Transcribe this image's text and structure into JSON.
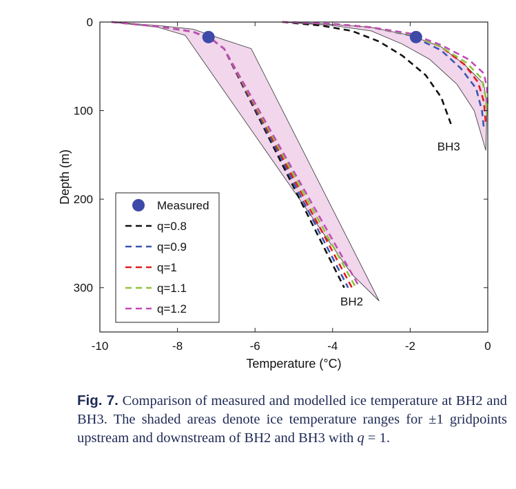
{
  "chart_data": {
    "type": "line",
    "xlabel": "Temperature (°C)",
    "ylabel": "Depth (m)",
    "xlim": [
      -10,
      0
    ],
    "ylim": [
      0,
      350
    ],
    "y_inverted": true,
    "xticks": [
      -10,
      -8,
      -6,
      -4,
      -2,
      0
    ],
    "yticks": [
      0,
      100,
      200,
      300
    ],
    "grid": false,
    "legend_position": "bottom-left",
    "colors": {
      "measured": "#3d4aa8",
      "band_fill": "#f1d6ec",
      "band_stroke": "#444444",
      "q=0.8": "#111111",
      "q=0.9": "#3a56b0",
      "q=1": "#dd1e1e",
      "q=1.1": "#8fc23a",
      "q=1.2": "#c04ab8"
    },
    "legend": [
      {
        "label": "Measured",
        "kind": "marker"
      },
      {
        "label": "q=0.8",
        "kind": "dash"
      },
      {
        "label": "q=0.9",
        "kind": "dash"
      },
      {
        "label": "q=1",
        "kind": "dash"
      },
      {
        "label": "q=1.1",
        "kind": "dash"
      },
      {
        "label": "q=1.2",
        "kind": "dash"
      }
    ],
    "annotations": [
      {
        "text": "BH2",
        "x": -3.8,
        "y": 320
      },
      {
        "text": "BH3",
        "x": -1.3,
        "y": 145
      }
    ],
    "measured": [
      {
        "x": -7.2,
        "y": 17
      },
      {
        "x": -1.85,
        "y": 17
      }
    ],
    "bands": [
      {
        "name": "BH2",
        "upper": [
          [
            -9.7,
            0
          ],
          [
            -8.5,
            4
          ],
          [
            -7.6,
            8
          ],
          [
            -6.8,
            20
          ],
          [
            -6.1,
            30
          ],
          [
            -2.8,
            315
          ]
        ],
        "lower": [
          [
            -9.7,
            0
          ],
          [
            -8.5,
            6
          ],
          [
            -7.8,
            15
          ],
          [
            -3.5,
            285
          ],
          [
            -2.8,
            315
          ]
        ]
      },
      {
        "name": "BH3",
        "upper": [
          [
            -5.3,
            0
          ],
          [
            -4.2,
            2
          ],
          [
            -3.0,
            6
          ],
          [
            -2.0,
            15
          ],
          [
            -1.2,
            28
          ],
          [
            -0.6,
            48
          ],
          [
            -0.1,
            70
          ],
          [
            -0.02,
            95
          ],
          [
            -0.05,
            145
          ]
        ],
        "lower": [
          [
            -5.3,
            0
          ],
          [
            -4.0,
            4
          ],
          [
            -3.0,
            10
          ],
          [
            -2.2,
            25
          ],
          [
            -1.5,
            42
          ],
          [
            -0.8,
            70
          ],
          [
            -0.35,
            100
          ],
          [
            -0.05,
            145
          ]
        ]
      }
    ],
    "series": [
      {
        "name": "q=0.8",
        "bh": "BH2",
        "points": [
          [
            -9.7,
            0
          ],
          [
            -8.5,
            5
          ],
          [
            -7.6,
            11
          ],
          [
            -7.1,
            20
          ],
          [
            -6.8,
            30
          ],
          [
            -3.7,
            300
          ]
        ]
      },
      {
        "name": "q=0.9",
        "bh": "BH2",
        "points": [
          [
            -9.7,
            0
          ],
          [
            -8.5,
            5
          ],
          [
            -7.6,
            11
          ],
          [
            -7.1,
            20
          ],
          [
            -6.8,
            30
          ],
          [
            -3.6,
            300
          ]
        ]
      },
      {
        "name": "q=1",
        "bh": "BH2",
        "points": [
          [
            -9.7,
            0
          ],
          [
            -8.5,
            5
          ],
          [
            -7.6,
            11
          ],
          [
            -7.1,
            20
          ],
          [
            -6.8,
            30
          ],
          [
            -3.5,
            300
          ]
        ]
      },
      {
        "name": "q=1.1",
        "bh": "BH2",
        "points": [
          [
            -9.7,
            0
          ],
          [
            -8.5,
            5
          ],
          [
            -7.6,
            11
          ],
          [
            -7.1,
            20
          ],
          [
            -6.8,
            30
          ],
          [
            -3.4,
            300
          ]
        ]
      },
      {
        "name": "q=1.2",
        "bh": "BH2",
        "points": [
          [
            -9.7,
            0
          ],
          [
            -8.5,
            5
          ],
          [
            -7.6,
            11
          ],
          [
            -7.1,
            20
          ],
          [
            -6.8,
            30
          ],
          [
            -3.3,
            300
          ]
        ]
      },
      {
        "name": "q=0.8",
        "bh": "BH3",
        "points": [
          [
            -5.3,
            0
          ],
          [
            -4.3,
            4
          ],
          [
            -3.5,
            10
          ],
          [
            -2.8,
            22
          ],
          [
            -2.2,
            38
          ],
          [
            -1.6,
            60
          ],
          [
            -1.2,
            85
          ],
          [
            -0.95,
            115
          ]
        ]
      },
      {
        "name": "q=0.9",
        "bh": "BH3",
        "points": [
          [
            -5.3,
            0
          ],
          [
            -4.0,
            2
          ],
          [
            -3.0,
            6
          ],
          [
            -2.0,
            15
          ],
          [
            -1.2,
            32
          ],
          [
            -0.7,
            52
          ],
          [
            -0.3,
            75
          ],
          [
            -0.15,
            100
          ],
          [
            -0.1,
            120
          ]
        ]
      },
      {
        "name": "q=1",
        "bh": "BH3",
        "points": [
          [
            -5.3,
            0
          ],
          [
            -4.0,
            2
          ],
          [
            -3.0,
            6
          ],
          [
            -2.0,
            14
          ],
          [
            -1.2,
            28
          ],
          [
            -0.6,
            48
          ],
          [
            -0.25,
            68
          ],
          [
            -0.1,
            90
          ],
          [
            -0.05,
            115
          ]
        ]
      },
      {
        "name": "q=1.1",
        "bh": "BH3",
        "points": [
          [
            -5.3,
            0
          ],
          [
            -4.0,
            2
          ],
          [
            -3.0,
            6
          ],
          [
            -2.0,
            14
          ],
          [
            -1.2,
            28
          ],
          [
            -0.55,
            46
          ],
          [
            -0.15,
            64
          ],
          [
            -0.05,
            85
          ],
          [
            -0.02,
            105
          ]
        ]
      },
      {
        "name": "q=1.2",
        "bh": "BH3",
        "points": [
          [
            -5.3,
            0
          ],
          [
            -4.0,
            2
          ],
          [
            -3.0,
            6
          ],
          [
            -2.0,
            13
          ],
          [
            -1.2,
            26
          ],
          [
            -0.5,
            42
          ],
          [
            -0.1,
            58
          ],
          [
            -0.02,
            75
          ],
          [
            0.0,
            95
          ]
        ]
      }
    ]
  },
  "caption": {
    "label": "Fig. 7.",
    "text_before_q": "Comparison of measured and modelled ice temperature at BH2 and BH3. The shaded areas denote ice temperature ranges for ±1 gridpoints upstream and downstream of BH2 and BH3 with",
    "q_symbol": "q",
    "text_after_q": "= 1."
  }
}
